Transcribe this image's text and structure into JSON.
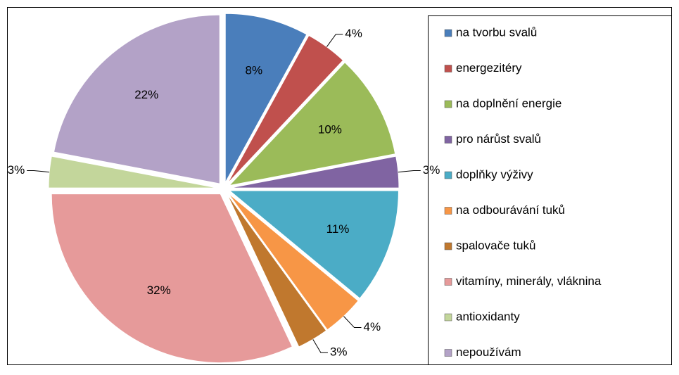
{
  "chart_data": {
    "type": "pie",
    "categories": [
      "na tvorbu svalů",
      "energezitéry",
      "na doplnění energie",
      "pro nárůst svalů",
      "doplňky výživy",
      "na odbourávání tuků",
      "spalovače tuků",
      "vitamíny, minerály, vláknina",
      "antioxidanty",
      "nepoužívám"
    ],
    "values": [
      8,
      4,
      10,
      3,
      11,
      4,
      3,
      32,
      3,
      22
    ],
    "value_labels": [
      "8%",
      "4%",
      "10%",
      "3%",
      "11%",
      "4%",
      "3%",
      "32%",
      "3%",
      "22%"
    ],
    "colors": [
      "#4a7ebb",
      "#c0504d",
      "#9bbb59",
      "#8064a2",
      "#4bacc6",
      "#f79646",
      "#c0782e",
      "#e69a9a",
      "#c3d69b",
      "#b3a2c7"
    ],
    "legend": "right"
  }
}
